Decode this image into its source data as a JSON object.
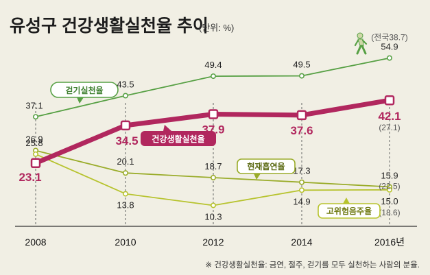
{
  "title": "유성구 건강생활실천율 추이",
  "unit": "(단위: %)",
  "footnote": "※ 건강생활실천율: 금연, 절주, 걷기를 모두 실천하는 사람의 분율.",
  "colors": {
    "background": "#f1efe4",
    "walking": "#57a044",
    "health": "#b1275e",
    "smoking": "#9aac2a",
    "drinking": "#b7c32e"
  },
  "chart_data": {
    "type": "line",
    "x": [
      "2008",
      "2010",
      "2012",
      "2014",
      "2016년"
    ],
    "series": [
      {
        "name": "걷기실천율",
        "values": [
          37.1,
          43.5,
          49.4,
          49.5,
          54.9
        ]
      },
      {
        "name": "건강생활실천율",
        "values": [
          23.1,
          34.5,
          37.9,
          37.6,
          42.1
        ]
      },
      {
        "name": "현재흡연율",
        "values": [
          26.9,
          20.1,
          18.7,
          17.3,
          15.9
        ]
      },
      {
        "name": "고위험음주율",
        "values": [
          25.8,
          13.8,
          10.3,
          14.9,
          15.0
        ]
      }
    ],
    "annotations": {
      "walking_national": "(전국38.7)",
      "health_national": "(27.1)",
      "smoking_national": "(22.5)",
      "drinking_national": "(18.6)"
    },
    "ylim": [
      5,
      60
    ],
    "grid": "vertical-dashed"
  }
}
